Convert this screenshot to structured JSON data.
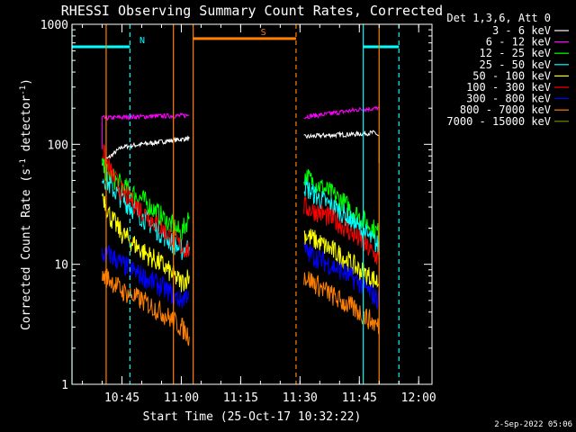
{
  "chart_data": {
    "type": "line",
    "title": "RHESSI Observing Summary Count Rates, Corrected",
    "xlabel": "Start Time (25-Oct-17 10:32:22)",
    "ylabel_main": "Corrected Count Rate (s",
    "ylabel_sup1": "-1",
    "ylabel_mid": " detector",
    "ylabel_sup2": "-1",
    "ylabel_end": ")",
    "y_scale": "log",
    "ylim": [
      1,
      1000
    ],
    "xlim": [
      "10:32:22",
      "11:03:22"
    ],
    "x_ticks": [
      "10:45",
      "11:00",
      "11:15",
      "11:30",
      "11:45",
      "12:00"
    ],
    "y_ticks": [
      "1",
      "10",
      "100",
      "1000"
    ],
    "legend_title": "Det 1,3,6, Att 0",
    "legend_position": "right",
    "footer": "2-Sep-2022 05:06",
    "series": [
      {
        "name": "3 - 6 keV",
        "color": "#ffffff",
        "segments": [
          {
            "x": [
              "10:40",
              "10:45",
              "10:50",
              "10:55",
              "11:00",
              "11:02"
            ],
            "y": [
              70,
              95,
              100,
              105,
              110,
              112
            ]
          },
          {
            "x": [
              "11:31",
              "11:35",
              "11:40",
              "11:45",
              "11:49",
              "11:50",
              "11:50"
            ],
            "y": [
              115,
              118,
              120,
              122,
              125,
              115,
              70
            ]
          }
        ]
      },
      {
        "name": "6 - 12 keV",
        "color": "#ff00ff",
        "segments": [
          {
            "x": [
              "10:40",
              "10:40",
              "10:45",
              "10:50",
              "10:55",
              "11:00",
              "11:02"
            ],
            "y": [
              90,
              165,
              168,
              170,
              172,
              173,
              175
            ]
          },
          {
            "x": [
              "11:31",
              "11:35",
              "11:40",
              "11:45",
              "11:50"
            ],
            "y": [
              170,
              175,
              185,
              195,
              200
            ]
          }
        ]
      },
      {
        "name": "12 - 25 keV",
        "color": "#00ff00",
        "segments": [
          {
            "x": [
              "10:40",
              "10:42",
              "10:45",
              "10:50",
              "10:55",
              "11:00",
              "11:02"
            ],
            "y": [
              65,
              55,
              45,
              35,
              25,
              18,
              25
            ]
          },
          {
            "x": [
              "11:31",
              "11:35",
              "11:40",
              "11:45",
              "11:50"
            ],
            "y": [
              55,
              45,
              35,
              25,
              18
            ]
          }
        ]
      },
      {
        "name": "25 - 50 keV",
        "color": "#00ffff",
        "segments": [
          {
            "x": [
              "10:40",
              "10:42",
              "10:45",
              "10:50",
              "10:55",
              "11:00",
              "11:02"
            ],
            "y": [
              55,
              45,
              35,
              25,
              18,
              13,
              14
            ]
          },
          {
            "x": [
              "11:31",
              "11:35",
              "11:40",
              "11:45",
              "11:50"
            ],
            "y": [
              45,
              35,
              28,
              20,
              14
            ]
          }
        ]
      },
      {
        "name": "50 - 100 keV",
        "color": "#ffff00",
        "segments": [
          {
            "x": [
              "10:40",
              "10:42",
              "10:45",
              "10:50",
              "10:55",
              "11:00",
              "11:02"
            ],
            "y": [
              40,
              25,
              18,
              13,
              10,
              7,
              8
            ]
          },
          {
            "x": [
              "11:31",
              "11:35",
              "11:40",
              "11:45",
              "11:50"
            ],
            "y": [
              18,
              15,
              12,
              9,
              7
            ]
          }
        ]
      },
      {
        "name": "100 - 300 keV",
        "color": "#ff0000",
        "segments": [
          {
            "x": [
              "10:40",
              "10:42",
              "10:45",
              "10:50",
              "10:55",
              "11:00",
              "11:02"
            ],
            "y": [
              90,
              60,
              40,
              28,
              20,
              14,
              13
            ]
          },
          {
            "x": [
              "11:31",
              "11:35",
              "11:40",
              "11:45",
              "11:50"
            ],
            "y": [
              30,
              27,
              22,
              16,
              11
            ]
          }
        ]
      },
      {
        "name": "300 - 800 keV",
        "color": "#0000ff",
        "segments": [
          {
            "x": [
              "10:40",
              "10:42",
              "10:45",
              "10:50",
              "10:55",
              "11:00",
              "11:02"
            ],
            "y": [
              12,
              12,
              10,
              8,
              6.5,
              5,
              6
            ]
          },
          {
            "x": [
              "11:31",
              "11:35",
              "11:40",
              "11:45",
              "11:50"
            ],
            "y": [
              13,
              11,
              9,
              7,
              5
            ]
          }
        ]
      },
      {
        "name": "800 - 7000 keV",
        "color": "#ff8000",
        "segments": [
          {
            "x": [
              "10:40",
              "10:42",
              "10:45",
              "10:50",
              "10:55",
              "11:00",
              "11:02"
            ],
            "y": [
              8,
              7.5,
              6,
              5,
              4,
              3,
              2.5
            ]
          },
          {
            "x": [
              "11:31",
              "11:35",
              "11:40",
              "11:45",
              "11:50"
            ],
            "y": [
              8,
              6.5,
              5,
              4,
              3
            ]
          }
        ]
      },
      {
        "name": "7000 - 15000 keV",
        "color": "#808000",
        "segments": []
      }
    ],
    "annotations": [
      {
        "type": "bar",
        "label": "N",
        "color": "#00ffff",
        "x0": "10:32:22",
        "x1": "10:47",
        "y": 650
      },
      {
        "type": "bar",
        "label": "",
        "color": "#00ffff",
        "x0": "11:46",
        "x1": "11:55",
        "y": 650
      },
      {
        "type": "bar",
        "label": "S",
        "color": "#ff8000",
        "x0": "11:03",
        "x1": "11:29",
        "y": 760
      },
      {
        "type": "vline",
        "color": "#00ffff",
        "style": "solid",
        "x": "10:32:22"
      },
      {
        "type": "vline",
        "color": "#00ffff",
        "style": "dashed",
        "x": "10:47"
      },
      {
        "type": "vline",
        "color": "#00ffff",
        "style": "solid",
        "x": "11:46"
      },
      {
        "type": "vline",
        "color": "#00ffff",
        "style": "dashed",
        "x": "11:55"
      },
      {
        "type": "vline",
        "color": "#ff8000",
        "style": "solid",
        "x": "10:41"
      },
      {
        "type": "vline",
        "color": "#ff8000",
        "style": "solid",
        "x": "10:58"
      },
      {
        "type": "vline",
        "color": "#ff8000",
        "style": "solid",
        "x": "11:03"
      },
      {
        "type": "vline",
        "color": "#ff8000",
        "style": "dashed",
        "x": "11:29"
      },
      {
        "type": "vline",
        "color": "#ff8000",
        "style": "solid",
        "x": "11:50"
      }
    ]
  }
}
